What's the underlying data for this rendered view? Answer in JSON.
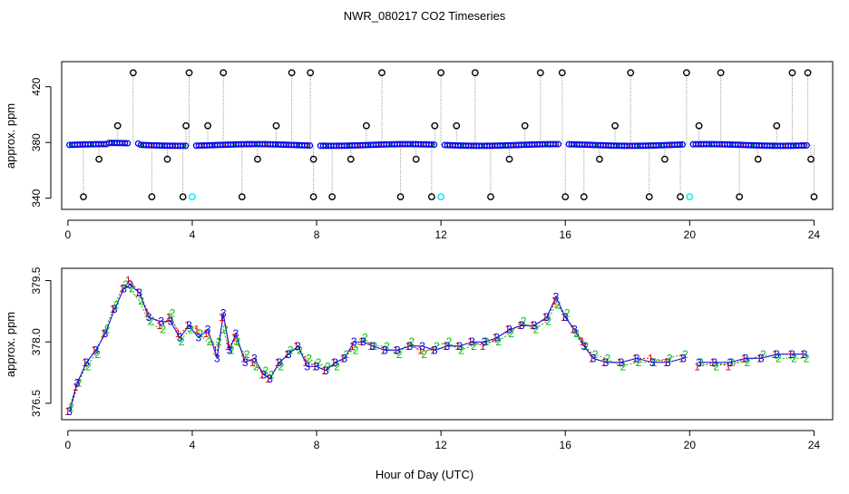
{
  "title": "NWR_080217  CO2 Timeseries",
  "xlabel": "Hour of Day (UTC)",
  "colors": {
    "blue": "#0000ee",
    "green": "#00bb00",
    "red": "#dd0000",
    "cyan": "#00e5ee",
    "black": "#000000",
    "orange": "#ff8c00",
    "gray": "#888888"
  },
  "chart_data": [
    {
      "type": "scatter",
      "name": "top-panel",
      "ylabel": "approx. ppm",
      "xlim": [
        -0.2,
        24.6
      ],
      "ylim": [
        332,
        438
      ],
      "xticks": [
        0,
        4,
        8,
        12,
        16,
        20,
        24
      ],
      "yticks": [
        340,
        380,
        420
      ],
      "baseline": 378.2,
      "high_flags": [
        2.1,
        3.9,
        5.0,
        7.2,
        7.8,
        10.1,
        12.0,
        13.1,
        15.2,
        15.9,
        18.1,
        19.9,
        21.0,
        23.3,
        23.8
      ],
      "mid_high_flags": [
        1.6,
        3.8,
        4.5,
        6.7,
        9.6,
        11.8,
        12.5,
        14.7,
        17.6,
        20.3,
        22.8
      ],
      "mid_low_flags": [
        1.0,
        3.2,
        6.1,
        7.9,
        9.1,
        11.2,
        14.2,
        17.1,
        19.2,
        22.2,
        23.9
      ],
      "low_flags": [
        0.5,
        2.7,
        3.7,
        5.6,
        7.9,
        8.5,
        10.7,
        11.7,
        13.6,
        16.0,
        16.6,
        18.7,
        19.7,
        21.6,
        24.0
      ],
      "cyan_points": [
        4.0,
        12.0,
        20.0
      ],
      "gaps": [
        [
          2.0,
          2.2
        ],
        [
          3.85,
          4.05
        ],
        [
          7.85,
          8.05
        ],
        [
          11.85,
          12.05
        ],
        [
          15.85,
          16.05
        ],
        [
          19.85,
          20.05
        ],
        [
          23.85,
          24.05
        ]
      ]
    },
    {
      "type": "line",
      "name": "bottom-panel",
      "ylabel": "approx. ppm",
      "xlim": [
        -0.2,
        24.6
      ],
      "ylim": [
        376.1,
        379.8
      ],
      "xticks": [
        0,
        4,
        8,
        12,
        16,
        20,
        24
      ],
      "yticks": [
        376.5,
        378.0,
        379.5
      ],
      "ytick_labels": [
        "376.5",
        "378.0",
        "379.5"
      ],
      "x": [
        0.05,
        0.3,
        0.6,
        0.9,
        1.2,
        1.5,
        1.8,
        2.0,
        2.3,
        2.6,
        3.0,
        3.3,
        3.6,
        3.9,
        4.2,
        4.5,
        4.8,
        5.0,
        5.2,
        5.4,
        5.7,
        6.0,
        6.3,
        6.5,
        6.8,
        7.1,
        7.4,
        7.7,
        8.0,
        8.3,
        8.6,
        8.9,
        9.2,
        9.5,
        9.8,
        10.2,
        10.6,
        11.0,
        11.4,
        11.8,
        12.2,
        12.6,
        13.0,
        13.4,
        13.8,
        14.2,
        14.6,
        15.0,
        15.4,
        15.7,
        16.0,
        16.3,
        16.6,
        16.9,
        17.3,
        17.8,
        18.3,
        18.8,
        19.3,
        19.8,
        20.3,
        20.8,
        21.3,
        21.8,
        22.3,
        22.8,
        23.3,
        23.7
      ],
      "series1": [
        376.3,
        376.9,
        377.5,
        377.8,
        378.2,
        378.8,
        379.3,
        379.5,
        379.2,
        378.7,
        378.4,
        378.6,
        378.2,
        378.4,
        378.3,
        378.2,
        377.8,
        378.6,
        377.9,
        378.1,
        377.6,
        377.5,
        377.2,
        377.1,
        377.5,
        377.7,
        377.9,
        377.5,
        377.4,
        377.3,
        377.5,
        377.6,
        377.9,
        378.0,
        377.9,
        377.8,
        377.8,
        377.9,
        377.8,
        377.8,
        377.9,
        377.9,
        378.0,
        377.9,
        378.1,
        378.3,
        378.4,
        378.4,
        378.6,
        379.0,
        378.6,
        378.3,
        378.0,
        377.6,
        377.5,
        377.5,
        377.6,
        377.6,
        377.5,
        377.6,
        377.4,
        377.5,
        377.4,
        377.6,
        377.6,
        377.7,
        377.7,
        377.7
      ],
      "series2": [
        376.4,
        377.0,
        377.4,
        377.7,
        378.3,
        378.9,
        379.4,
        379.3,
        379.0,
        378.5,
        378.3,
        378.7,
        378.0,
        378.3,
        378.2,
        378.0,
        378.0,
        378.3,
        377.8,
        378.0,
        377.7,
        377.4,
        377.3,
        377.2,
        377.4,
        377.8,
        377.8,
        377.6,
        377.5,
        377.4,
        377.4,
        377.7,
        377.8,
        378.1,
        377.9,
        377.9,
        377.7,
        378.0,
        377.7,
        377.9,
        378.0,
        377.8,
        377.9,
        378.0,
        378.0,
        378.2,
        378.5,
        378.3,
        378.5,
        378.9,
        378.7,
        378.2,
        377.9,
        377.7,
        377.6,
        377.4,
        377.5,
        377.5,
        377.6,
        377.7,
        377.5,
        377.4,
        377.5,
        377.5,
        377.7,
        377.6,
        377.6,
        377.6
      ],
      "series3": [
        376.3,
        377.0,
        377.5,
        377.8,
        378.2,
        378.8,
        379.3,
        379.4,
        379.2,
        378.6,
        378.5,
        378.5,
        378.1,
        378.4,
        378.1,
        378.3,
        377.6,
        378.7,
        377.8,
        378.2,
        377.5,
        377.6,
        377.2,
        377.1,
        377.5,
        377.7,
        377.9,
        377.4,
        377.4,
        377.3,
        377.5,
        377.6,
        378.0,
        378.0,
        377.9,
        377.8,
        377.8,
        377.9,
        377.9,
        377.8,
        377.9,
        377.9,
        378.0,
        378.0,
        378.1,
        378.3,
        378.4,
        378.4,
        378.6,
        379.1,
        378.6,
        378.3,
        377.9,
        377.6,
        377.5,
        377.5,
        377.6,
        377.5,
        377.5,
        377.6,
        377.5,
        377.5,
        377.5,
        377.6,
        377.6,
        377.7,
        377.7,
        377.7
      ],
      "series_labels": [
        "1",
        "2",
        "3"
      ],
      "gap_between": [
        19.8,
        20.3
      ]
    }
  ]
}
